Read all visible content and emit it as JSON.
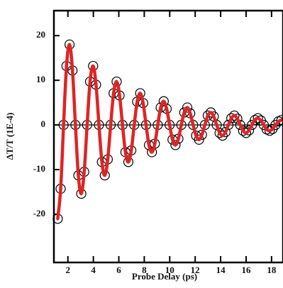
{
  "chart_data": {
    "type": "line",
    "markers": true,
    "xlabel": "Probe Delay (ps)",
    "ylabel": "ΔT/T (1E-4)",
    "x": [
      1.2,
      1.43,
      1.66,
      1.89,
      2.13,
      2.36,
      2.59,
      2.82,
      3.05,
      3.28,
      3.51,
      3.74,
      3.98,
      4.21,
      4.44,
      4.67,
      4.9,
      5.13,
      5.36,
      5.59,
      5.83,
      6.06,
      6.29,
      6.52,
      6.75,
      6.98,
      7.21,
      7.44,
      7.68,
      7.91,
      8.14,
      8.37,
      8.6,
      8.83,
      9.06,
      9.29,
      9.53,
      9.76,
      9.99,
      10.22,
      10.45,
      10.68,
      10.91,
      11.14,
      11.38,
      11.61,
      11.84,
      12.07,
      12.3,
      12.53,
      12.76,
      12.99,
      13.23,
      13.46,
      13.69,
      13.92,
      14.15,
      14.38,
      14.61,
      14.84,
      15.08,
      15.31,
      15.54,
      15.77,
      16.0,
      16.23,
      16.46,
      16.69,
      16.93,
      17.16,
      17.39,
      17.62,
      17.85,
      18.08,
      18.31,
      18.54,
      18.78
    ],
    "values": [
      -21.0,
      -14.3,
      0,
      13.2,
      18.0,
      12.2,
      0,
      -11.3,
      -15.4,
      -10.5,
      0,
      9.7,
      13.2,
      9.0,
      0,
      -8.3,
      -11.3,
      -7.7,
      0,
      7.1,
      9.7,
      6.6,
      0,
      -6.1,
      -8.3,
      -5.7,
      0,
      5.2,
      7.1,
      4.9,
      0,
      -4.5,
      -6.1,
      -4.2,
      0,
      3.9,
      5.3,
      3.6,
      0,
      -3.3,
      -4.5,
      -3.1,
      0,
      2.8,
      3.9,
      2.6,
      0,
      -2.4,
      -3.3,
      -2.2,
      0,
      2.1,
      2.8,
      1.9,
      0,
      -1.8,
      -2.4,
      -1.6,
      0,
      1.5,
      2.1,
      1.4,
      0,
      -1.3,
      -1.8,
      -1.2,
      0,
      1.1,
      1.5,
      1.0,
      0,
      -1.0,
      -1.3,
      -0.9,
      0,
      0.8,
      1.1
    ],
    "marker_color": "#000000",
    "color": "#e02424",
    "xlim": [
      0.9,
      18.9
    ],
    "ylim": [
      -30.8,
      25.6
    ],
    "xticks": [
      2,
      4,
      6,
      8,
      10,
      12,
      14,
      16,
      18
    ],
    "yticks": [
      -20,
      -10,
      0,
      10,
      20
    ],
    "zero_line": true
  }
}
